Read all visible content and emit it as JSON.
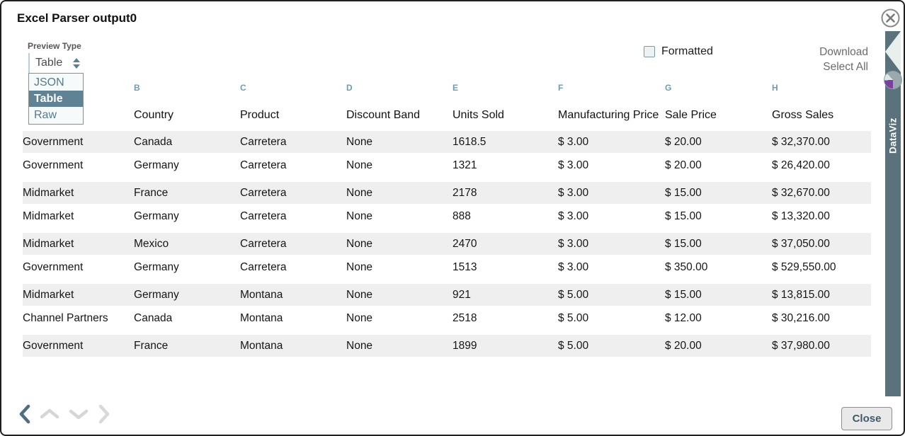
{
  "dialog": {
    "title": "Excel Parser output0",
    "close_label": "Close"
  },
  "toolbar": {
    "preview_type_label": "Preview Type",
    "preview_type_value": "Table",
    "preview_type_options": [
      "JSON",
      "Table",
      "Raw"
    ],
    "preview_type_selected_index": 1,
    "formatted_label": "Formatted",
    "formatted_checked": false,
    "download_label": "Download",
    "select_all_label": "Select All"
  },
  "table": {
    "column_letters": [
      "",
      "B",
      "C",
      "D",
      "E",
      "F",
      "G",
      "H"
    ],
    "headers": [
      "",
      "Country",
      "Product",
      "Discount Band",
      "Units Sold",
      "Manufacturing Price",
      "Sale Price",
      "Gross Sales"
    ],
    "rows": [
      [
        "Government",
        "Canada",
        "Carretera",
        "None",
        "1618.5",
        "$ 3.00",
        "$ 20.00",
        "$ 32,370.00"
      ],
      [
        "Government",
        "Germany",
        "Carretera",
        "None",
        "1321",
        "$ 3.00",
        "$ 20.00",
        "$ 26,420.00"
      ],
      [
        "Midmarket",
        "France",
        "Carretera",
        "None",
        "2178",
        "$ 3.00",
        "$ 15.00",
        "$ 32,670.00"
      ],
      [
        "Midmarket",
        "Germany",
        "Carretera",
        "None",
        "888",
        "$ 3.00",
        "$ 15.00",
        "$ 13,320.00"
      ],
      [
        "Midmarket",
        "Mexico",
        "Carretera",
        "None",
        "2470",
        "$ 3.00",
        "$ 15.00",
        "$ 37,050.00"
      ],
      [
        "Government",
        "Germany",
        "Carretera",
        "None",
        "1513",
        "$ 3.00",
        "$ 350.00",
        "$ 529,550.00"
      ],
      [
        "Midmarket",
        "Germany",
        "Montana",
        "None",
        "921",
        "$ 5.00",
        "$ 15.00",
        "$ 13,815.00"
      ],
      [
        "Channel Partners",
        "Canada",
        "Montana",
        "None",
        "2518",
        "$ 5.00",
        "$ 12.00",
        "$ 30,216.00"
      ],
      [
        "Government",
        "France",
        "Montana",
        "None",
        "1899",
        "$ 5.00",
        "$ 20.00",
        "$ 37,980.00"
      ]
    ]
  },
  "side_tab": {
    "label": "DataViz",
    "icon": "pie-chart-icon"
  },
  "footer": {
    "nav_icons": [
      "chevron-left",
      "chevron-up",
      "chevron-down",
      "chevron-right"
    ]
  },
  "icons": {
    "close": "circled-x-icon",
    "select": "up-down-spinner-icon",
    "checkbox": "unchecked-box"
  },
  "colors": {
    "accent_slate": "#5f8395",
    "side_strip": "#5a727b",
    "column_letter": "#6d9bb1",
    "row_stripe": "#efefef",
    "pie_purple": "#7b3fa0",
    "link_gray": "#6b6b6b",
    "nav_active": "#4e6f80",
    "nav_disabled": "#d6d6d6"
  }
}
